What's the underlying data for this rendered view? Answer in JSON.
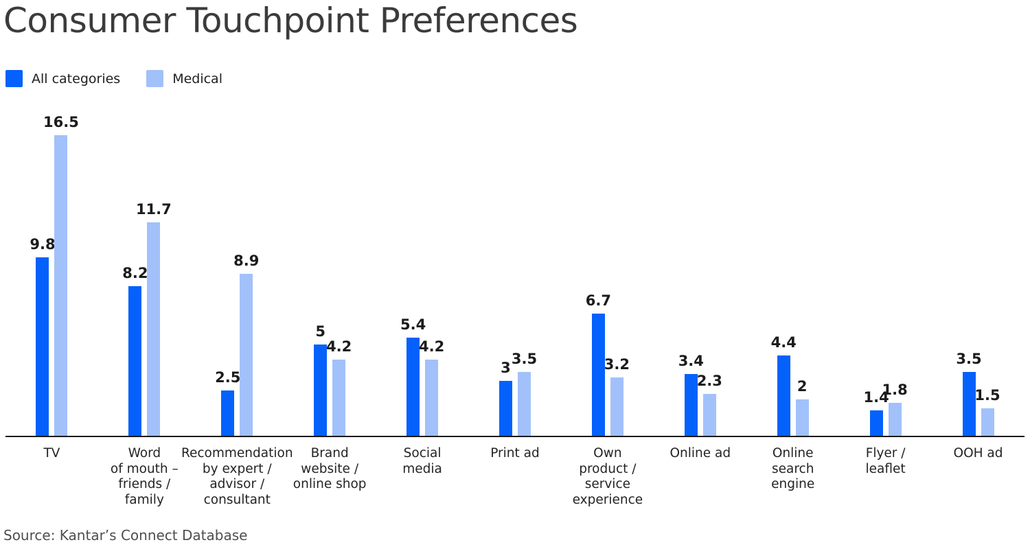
{
  "title": "Consumer Touchpoint Preferences",
  "legend": {
    "items": [
      {
        "label": "All categories",
        "color": "#0561FC"
      },
      {
        "label": "Medical",
        "color": "#A2C1FA"
      }
    ]
  },
  "source": "Source: Kantar’s Connect Database",
  "colors": {
    "series_all_categories": "#0561FC",
    "series_medical": "#A2C1FA",
    "title_text": "#3B3B3B",
    "value_label": "#1C1C1C",
    "category_label": "#242424",
    "axis_line": "#191919",
    "source_text": "#4E4E4E",
    "background": "#FFFFFF"
  },
  "chart_data": {
    "type": "bar",
    "title": "Consumer Touchpoint Preferences",
    "xlabel": "",
    "ylabel": "",
    "ylim": [
      0,
      17
    ],
    "grid": false,
    "value_labels": true,
    "legend_position": "top-left",
    "source": "Source: Kantar’s Connect Database",
    "categories": [
      "TV",
      "Word of mouth – friends / family",
      "Recommendation by expert / advisor / consultant",
      "Brand website / online shop",
      "Social media",
      "Print ad",
      "Own product / service experience",
      "Online ad",
      "Online search engine",
      "Flyer / leaflet",
      "OOH ad"
    ],
    "category_display_lines": [
      [
        "TV"
      ],
      [
        "Word",
        "of mouth –",
        "friends /",
        "family"
      ],
      [
        "Recommendation",
        "by expert /",
        "advisor /",
        "consultant"
      ],
      [
        "Brand",
        "website /",
        "online shop"
      ],
      [
        "Social",
        "media"
      ],
      [
        "Print ad"
      ],
      [
        "Own",
        "product /",
        "service",
        "experience"
      ],
      [
        "Online ad"
      ],
      [
        "Online",
        "search",
        "engine"
      ],
      [
        "Flyer /",
        "leaflet"
      ],
      [
        "OOH ad"
      ]
    ],
    "series": [
      {
        "name": "All categories",
        "color": "#0561FC",
        "values": [
          9.8,
          8.2,
          2.5,
          5,
          5.4,
          3,
          6.7,
          3.4,
          4.4,
          1.4,
          3.5
        ]
      },
      {
        "name": "Medical",
        "color": "#A2C1FA",
        "values": [
          16.5,
          11.7,
          8.9,
          4.2,
          4.2,
          3.5,
          3.2,
          2.3,
          2,
          1.8,
          1.5
        ]
      }
    ]
  }
}
